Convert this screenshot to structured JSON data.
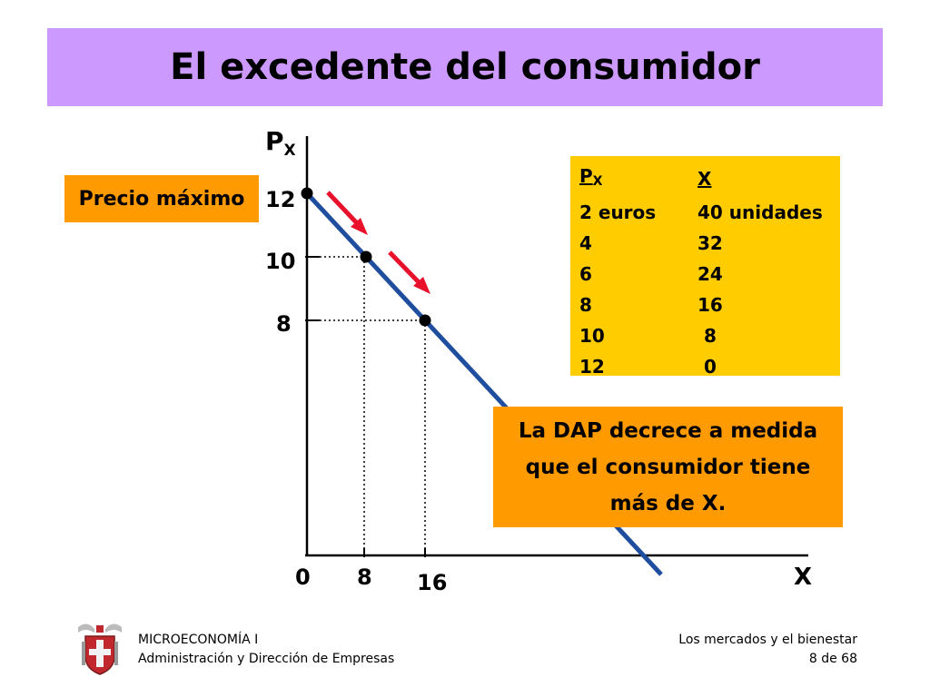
{
  "header": {
    "title": "El excedente del consumidor"
  },
  "chart_data": {
    "type": "line",
    "y_axis_label": "P",
    "y_axis_label_sub": "X",
    "x_axis_label": "X",
    "origin_label": "0",
    "x_ticks": [
      "8",
      "16"
    ],
    "y_ticks": [
      "12",
      "10",
      "8"
    ],
    "demand_line": {
      "x": [
        0,
        48
      ],
      "y": [
        12,
        0
      ]
    },
    "points": [
      {
        "x": 0,
        "y": 12
      },
      {
        "x": 8,
        "y": 10
      },
      {
        "x": 16,
        "y": 8
      }
    ],
    "line_color": "#1f4e9e",
    "arrow_color": "#e8102a"
  },
  "precio_box": {
    "label": "Precio máximo"
  },
  "table": {
    "header_col1": "P",
    "header_col1_sub": "X",
    "header_col2": "X",
    "rows": [
      {
        "p": "2 euros",
        "x": "40 unidades"
      },
      {
        "p": "4",
        "x": "32"
      },
      {
        "p": "6",
        "x": "24"
      },
      {
        "p": "8",
        "x": "16"
      },
      {
        "p": "10",
        "x": " 8"
      },
      {
        "p": "12",
        "x": " 0"
      }
    ]
  },
  "dap_box": {
    "line1": "La DAP decrece a medida",
    "line2": "que el consumidor tiene",
    "line3": "más de X."
  },
  "footer": {
    "course": "MICROECONOMÍA I",
    "program": "Administración y Dirección de Empresas",
    "topic": "Los mercados y el bienestar",
    "page": "8 de 68"
  }
}
